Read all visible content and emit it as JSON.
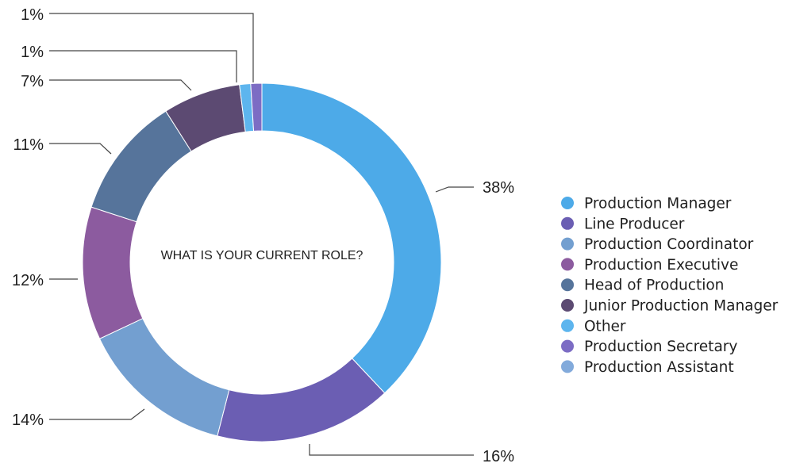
{
  "chart_data": {
    "type": "pie",
    "donut": true,
    "title": "WHAT IS YOUR CURRENT ROLE?",
    "legend_position": "right",
    "slices": [
      {
        "name": "Production Manager",
        "value": 38,
        "label": "38%",
        "color": "#4DAAE8"
      },
      {
        "name": "Line Producer",
        "value": 16,
        "label": "16%",
        "color": "#6B5EB3"
      },
      {
        "name": "Production Coordinator",
        "value": 14,
        "label": "14%",
        "color": "#739FD0"
      },
      {
        "name": "Production Executive",
        "value": 12,
        "label": "12%",
        "color": "#8C5B9F"
      },
      {
        "name": "Head of Production",
        "value": 11,
        "label": "11%",
        "color": "#56749B"
      },
      {
        "name": "Junior Production Manager",
        "value": 7,
        "label": "7%",
        "color": "#5C4A72"
      },
      {
        "name": "Other",
        "value": 1,
        "label": "1%",
        "color": "#5DB5EE"
      },
      {
        "name": "Production Secretary",
        "value": 1,
        "label": "1%",
        "color": "#7C6CC4"
      },
      {
        "name": "Production Assistant",
        "value": 0,
        "label": "",
        "color": "#82AADB"
      }
    ]
  }
}
